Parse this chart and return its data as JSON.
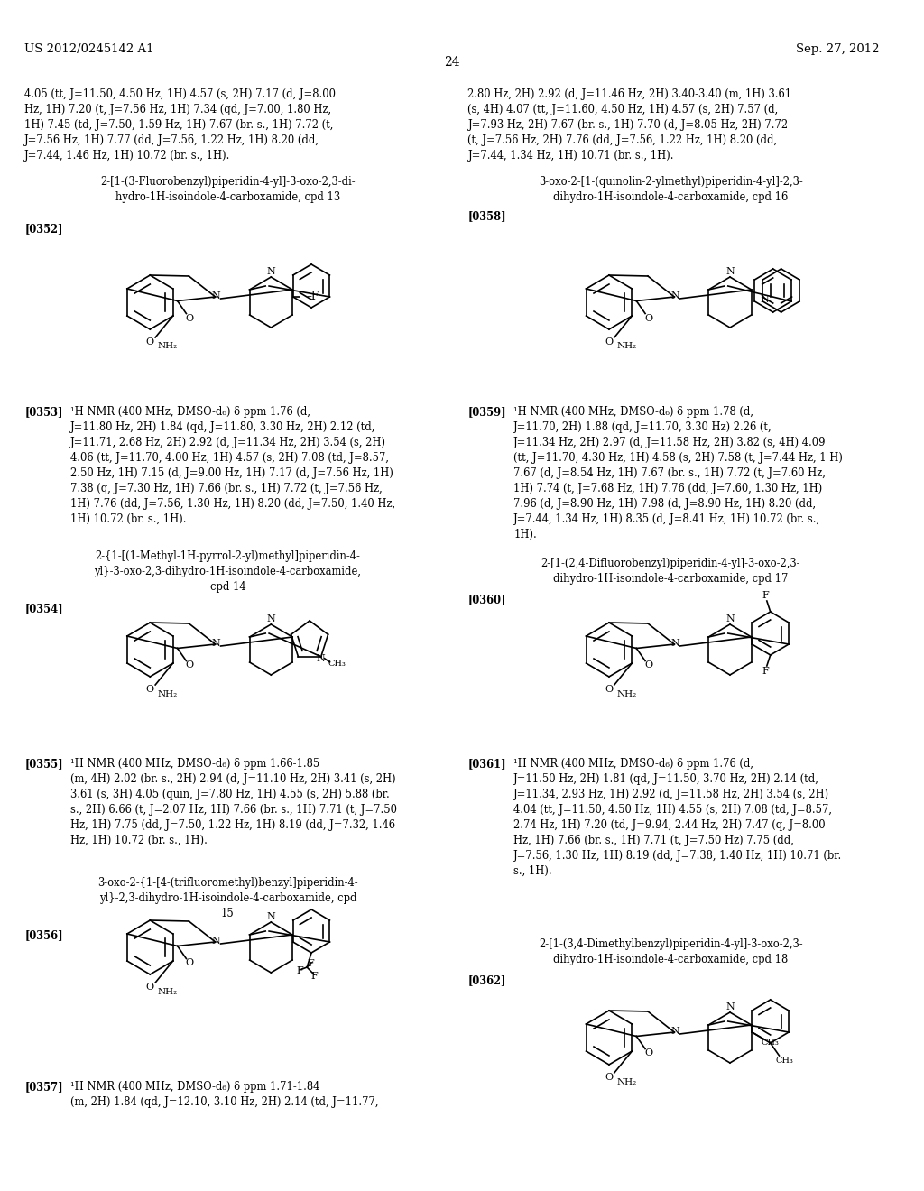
{
  "page_header_left": "US 2012/0245142 A1",
  "page_header_right": "Sep. 27, 2012",
  "page_number": "24",
  "bg": "#ffffff",
  "fg": "#000000"
}
